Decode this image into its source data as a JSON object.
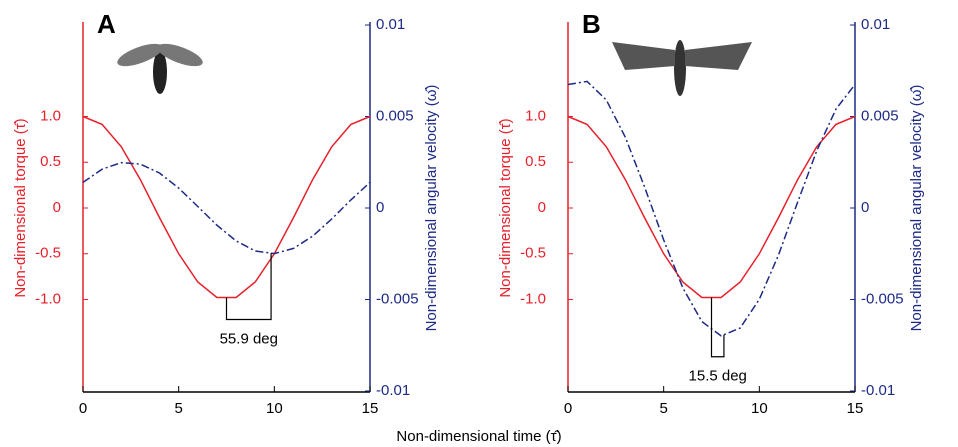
{
  "xlabel": "Non-dimensional time (τ̂)",
  "chart_data": [
    {
      "type": "line",
      "panel_label": "A",
      "ylabel": "Non-dimensional torque (τ̂)",
      "y2label": "Non-dimensional angular velocity (ω̂)",
      "x": [
        0,
        1,
        2,
        3,
        4,
        5,
        6,
        7,
        8,
        9,
        10,
        11,
        12,
        13,
        14,
        15
      ],
      "xlim": [
        0,
        15
      ],
      "xticks": [
        0,
        5,
        10,
        15
      ],
      "ylim": [
        -2,
        2
      ],
      "yticks": [
        {
          "value": -1,
          "label": "-1.0"
        },
        -0.5,
        0,
        0.5,
        {
          "value": 1,
          "label": "1.0"
        }
      ],
      "y2lim": [
        -0.01,
        0.01
      ],
      "y2ticks": [
        -0.01,
        -0.005,
        0,
        0.005,
        0.01
      ],
      "series": [
        {
          "color": "#e8202a",
          "values": [
            1,
            0.9135,
            0.6691,
            0.309,
            -0.1045,
            -0.5,
            -0.809,
            -0.9781,
            -0.9781,
            -0.809,
            -0.5,
            -0.1045,
            0.309,
            0.6691,
            0.9135,
            1
          ]
        },
        {
          "color": "#1d2a86",
          "axis": "y2",
          "dash": "dash-dot",
          "values": [
            0.0014,
            0.00212,
            0.00248,
            0.0024,
            0.00191,
            0.00109,
            8e-05,
            -0.00094,
            -0.0018,
            -0.00235,
            -0.00249,
            -0.00221,
            -0.00154,
            -0.0006,
            0.00044,
            0.0014
          ]
        }
      ],
      "annotation": {
        "text": "55.9 deg",
        "x": [
          7.5,
          9.83
        ]
      }
    },
    {
      "type": "line",
      "panel_label": "B",
      "ylabel": "Non-dimensional torque (τ̂)",
      "y2label": "Non-dimensional angular velocity (ω̂)",
      "x": [
        0,
        1,
        2,
        3,
        4,
        5,
        6,
        7,
        8,
        9,
        10,
        11,
        12,
        13,
        14,
        15
      ],
      "xlim": [
        0,
        15
      ],
      "xticks": [
        0,
        5,
        10,
        15
      ],
      "ylim": [
        -2,
        2
      ],
      "yticks": [
        {
          "value": -1,
          "label": "-1.0"
        },
        -0.5,
        0,
        0.5,
        {
          "value": 1,
          "label": "1.0"
        }
      ],
      "y2lim": [
        -0.01,
        0.01
      ],
      "y2ticks": [
        -0.01,
        -0.005,
        0,
        0.005,
        0.01
      ],
      "series": [
        {
          "color": "#e8202a",
          "values": [
            1,
            0.9135,
            0.6691,
            0.309,
            -0.1045,
            -0.5,
            -0.809,
            -0.9781,
            -0.9781,
            -0.809,
            -0.5,
            -0.1045,
            0.309,
            0.6691,
            0.9135,
            1
          ]
        },
        {
          "color": "#1d2a86",
          "axis": "y2",
          "dash": "dash-dot",
          "values": [
            0.00675,
            0.00692,
            0.0059,
            0.00386,
            0.00116,
            -0.00175,
            -0.00436,
            -0.00621,
            -0.00699,
            -0.00656,
            -0.00499,
            -0.00257,
            0.00031,
            0.00312,
            0.0054,
            0.00675
          ]
        }
      ],
      "annotation": {
        "text": "15.5 deg",
        "x": [
          7.5,
          8.15
        ]
      }
    }
  ]
}
